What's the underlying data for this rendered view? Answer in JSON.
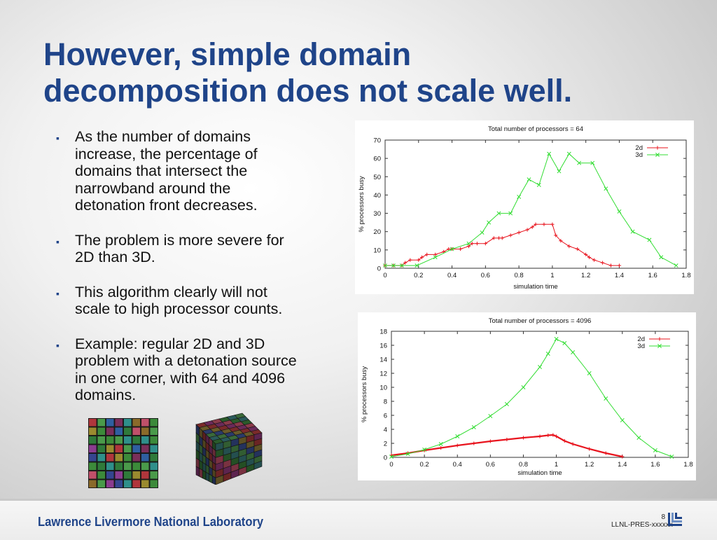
{
  "title": {
    "line1": "However, simple domain",
    "line2": "decomposition does not scale well."
  },
  "bullets": [
    {
      "lines": [
        "As the number of domains",
        "increase, the percentage of",
        "domains that intersect the",
        "narrowband around the",
        "detonation front decreases."
      ]
    },
    {
      "lines": [
        "The problem is more severe for",
        "2D than 3D."
      ]
    },
    {
      "lines": [
        "This algorithm clearly will not",
        "scale to high processor counts."
      ]
    },
    {
      "lines": [
        "Example:  regular 2D and 3D",
        "problem with a detonation source",
        "in one corner, with 64 and 4096",
        "domains."
      ]
    }
  ],
  "footer": {
    "lab_name": "Lawrence Livermore National Laboratory",
    "page_number": "8",
    "doc_code": "LLNL-PRES-xxxxxx"
  },
  "illustrations": {
    "grid_icon": "2d-domain-grid-icon",
    "cube_icon": "3d-domain-cube-icon"
  },
  "colors": {
    "title": "#1f4489",
    "series_2d": "#e8141e",
    "series_3d": "#33dd33"
  },
  "chart_data": [
    {
      "type": "line",
      "title": "Total number of processors = 64",
      "xlabel": "simulation time",
      "ylabel": "% processors busy",
      "xlim": [
        0,
        1.8
      ],
      "ylim": [
        0,
        70
      ],
      "xticks": [
        "0",
        "0.2",
        "0.4",
        "0.6",
        "0.8",
        "1",
        "1.2",
        "1.4",
        "1.6",
        "1.8"
      ],
      "yticks": [
        "0",
        "10",
        "20",
        "30",
        "40",
        "50",
        "60",
        "70"
      ],
      "legend_position": "top-right",
      "grid": false,
      "series": [
        {
          "name": "2d",
          "marker": "+",
          "x": [
            0,
            0.05,
            0.1,
            0.12,
            0.15,
            0.2,
            0.22,
            0.25,
            0.3,
            0.35,
            0.38,
            0.4,
            0.45,
            0.5,
            0.52,
            0.55,
            0.6,
            0.65,
            0.68,
            0.7,
            0.75,
            0.8,
            0.85,
            0.88,
            0.9,
            0.95,
            1.0,
            1.02,
            1.05,
            1.1,
            1.15,
            1.2,
            1.22,
            1.25,
            1.3,
            1.35,
            1.4
          ],
          "y": [
            1.5,
            1.5,
            1.5,
            3,
            4.5,
            4.5,
            6,
            7.5,
            7.5,
            9,
            10.5,
            10.5,
            10.5,
            12,
            13.5,
            13.5,
            13.5,
            16.5,
            16.5,
            16.5,
            18,
            19.5,
            21,
            22.5,
            24,
            24,
            24,
            18,
            15,
            12,
            10.5,
            7.5,
            6,
            4.5,
            3,
            1.5,
            1.5
          ]
        },
        {
          "name": "3d",
          "marker": "x",
          "x": [
            0,
            0.05,
            0.1,
            0.19,
            0.3,
            0.4,
            0.5,
            0.58,
            0.62,
            0.68,
            0.75,
            0.8,
            0.86,
            0.92,
            0.98,
            1.04,
            1.1,
            1.16,
            1.24,
            1.32,
            1.4,
            1.48,
            1.58,
            1.65,
            1.74
          ],
          "y": [
            1.5,
            1.5,
            1.5,
            1.5,
            6,
            10.5,
            13.5,
            19.5,
            25,
            30,
            30,
            39,
            48.5,
            45.5,
            62.5,
            53,
            62.5,
            57.5,
            57.5,
            43.5,
            31,
            20,
            15.5,
            6,
            1.5
          ]
        }
      ]
    },
    {
      "type": "line",
      "title": "Total number of processors = 4096",
      "xlabel": "simulation time",
      "ylabel": "% processors busy",
      "xlim": [
        0,
        1.8
      ],
      "ylim": [
        0,
        18
      ],
      "xticks": [
        "0",
        "0.2",
        "0.4",
        "0.6",
        "0.8",
        "1",
        "1.2",
        "1.4",
        "1.6",
        "1.8"
      ],
      "yticks": [
        "0",
        "2",
        "4",
        "6",
        "8",
        "10",
        "12",
        "14",
        "16",
        "18"
      ],
      "legend_position": "top-right",
      "grid": false,
      "series": [
        {
          "name": "2d",
          "marker": "+",
          "x": [
            0,
            0.1,
            0.2,
            0.3,
            0.4,
            0.5,
            0.6,
            0.7,
            0.8,
            0.9,
            0.95,
            0.98,
            1.0,
            1.05,
            1.1,
            1.2,
            1.3,
            1.4
          ],
          "y": [
            0.3,
            0.6,
            1.0,
            1.35,
            1.7,
            2.0,
            2.3,
            2.55,
            2.8,
            3.0,
            3.15,
            3.2,
            3.0,
            2.35,
            1.9,
            1.2,
            0.6,
            0.1
          ]
        },
        {
          "name": "3d",
          "marker": "x",
          "x": [
            0,
            0.1,
            0.2,
            0.3,
            0.4,
            0.5,
            0.6,
            0.7,
            0.8,
            0.9,
            0.95,
            1.0,
            1.05,
            1.1,
            1.2,
            1.3,
            1.4,
            1.5,
            1.6,
            1.7
          ],
          "y": [
            0.1,
            0.5,
            1.1,
            1.9,
            3.0,
            4.3,
            5.9,
            7.6,
            10.0,
            12.9,
            14.8,
            16.9,
            16.3,
            15.0,
            12.0,
            8.4,
            5.3,
            2.8,
            1.0,
            0.1
          ]
        }
      ]
    }
  ]
}
